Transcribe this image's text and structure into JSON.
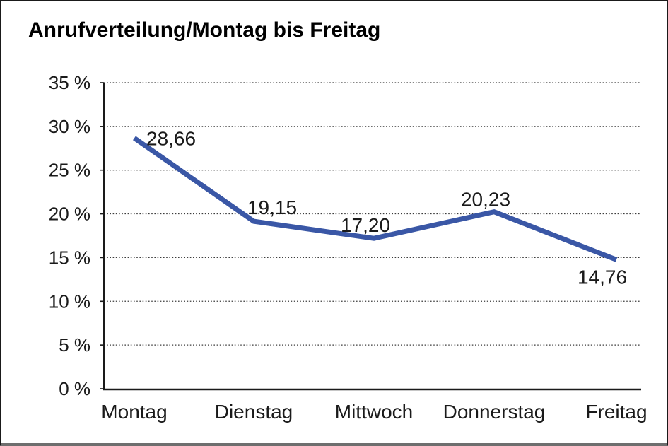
{
  "chart_data": {
    "type": "line",
    "title": "Anrufverteilung/Montag bis Freitag",
    "categories": [
      "Montag",
      "Dienstag",
      "Mittwoch",
      "Donnerstag",
      "Freitag"
    ],
    "series": [
      {
        "name": "Anrufverteilung",
        "values": [
          28.66,
          19.15,
          17.2,
          20.23,
          14.76
        ],
        "value_labels": [
          "28,66",
          "19,15",
          "17,20",
          "20,23",
          "14,76"
        ]
      }
    ],
    "xlabel": "",
    "ylabel": "",
    "ylim": [
      0,
      35
    ],
    "ytick_step": 5,
    "ytick_labels": [
      "0 %",
      "5 %",
      "10 %",
      "15 %",
      "20 %",
      "25 %",
      "30 %",
      "35 %"
    ],
    "grid": "horizontal-dotted",
    "legend_position": "none",
    "colors": {
      "line": "#3A57A6",
      "axis": "#1a1a1a",
      "gridline": "#3c3c3c",
      "text": "#1a1a1a",
      "background": "#ffffff"
    }
  }
}
